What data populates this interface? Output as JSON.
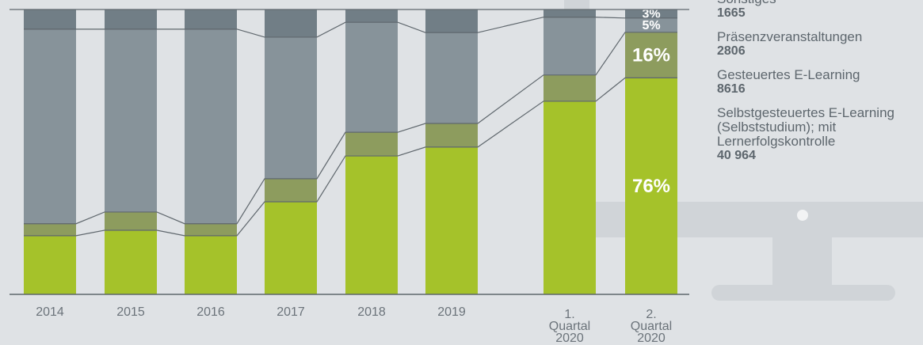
{
  "chart_data": {
    "type": "stacked-bar-100",
    "categories": [
      "2014",
      "2015",
      "2016",
      "2017",
      "2018",
      "2019",
      "1. Quartal 2020",
      "2. Quartal 2020"
    ],
    "ylim": [
      0,
      100
    ],
    "series": [
      {
        "name": "Selbstgesteuertes E-Learning (Selbststudium); mit Lernerfolgskontrolle",
        "color": "#a5c22a",
        "values": [
          20.6,
          22.5,
          20.6,
          32.5,
          48.6,
          51.7,
          67.8,
          76
        ],
        "value_labels": [
          null,
          null,
          null,
          null,
          null,
          null,
          null,
          "76%"
        ],
        "total": 40964,
        "total_label": "40 964"
      },
      {
        "name": "Gesteuertes E-Learning",
        "color": "#8d9c5e",
        "values": [
          4.2,
          6.4,
          4.2,
          8.1,
          8.3,
          8.3,
          9.2,
          16
        ],
        "value_labels": [
          null,
          null,
          null,
          null,
          null,
          null,
          null,
          "16%"
        ],
        "total": 8616
      },
      {
        "name": "Präsenzveranstaltungen",
        "color": "#87939a",
        "values": [
          68.3,
          64.2,
          68.3,
          49.7,
          38.6,
          31.9,
          20.3,
          5
        ],
        "value_labels": [
          null,
          null,
          null,
          null,
          null,
          null,
          null,
          "5%"
        ],
        "total": 2806
      },
      {
        "name": "Sonstiges",
        "color": "#717e86",
        "values": [
          6.9,
          6.9,
          6.9,
          9.7,
          4.4,
          8.1,
          2.8,
          3
        ],
        "value_labels": [
          null,
          null,
          null,
          null,
          null,
          null,
          null,
          "3%"
        ],
        "total": 1665
      }
    ]
  }
}
